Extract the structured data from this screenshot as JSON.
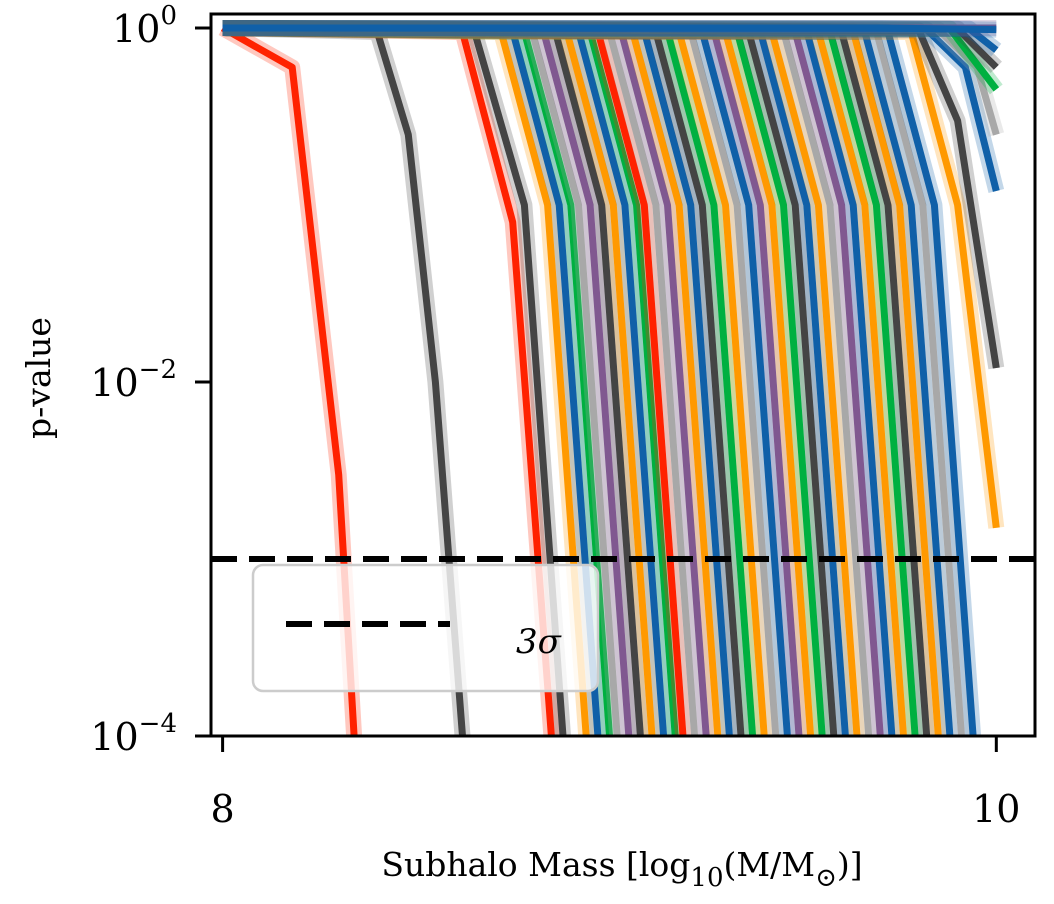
{
  "chart_data": {
    "type": "line",
    "xlabel": "Subhalo Mass [log",
    "xlabel_sub": "10",
    "xlabel_tail": "(M/M",
    "xlabel_sub2": "⊙",
    "xlabel_end": ")]",
    "ylabel": "p-value",
    "x_scale": "linear",
    "y_scale": "log",
    "xlim": [
      7.97,
      10.1
    ],
    "ylim": [
      0.0001,
      1.2
    ],
    "x_ticks": [
      {
        "value": 8,
        "label": "8"
      },
      {
        "value": 10,
        "label": "10"
      }
    ],
    "y_ticks": [
      {
        "value": 1,
        "base": "10",
        "exp": "0"
      },
      {
        "value": 0.01,
        "base": "10",
        "exp": "−2"
      },
      {
        "value": 0.0001,
        "base": "10",
        "exp": "−4"
      }
    ],
    "threshold": {
      "value": 0.001,
      "style": "dashed",
      "color": "#000000"
    },
    "legend": {
      "placement": "lower-left",
      "entries": [
        {
          "label": "3σ",
          "style": "dashed"
        }
      ]
    },
    "palette": [
      "#ff2200",
      "#444444",
      "#ff9900",
      "#1060a8",
      "#00b040",
      "#805890",
      "#a8a8a8"
    ],
    "series": [
      {
        "color": "#ff2200",
        "points": [
          [
            8.0,
            1.0
          ],
          [
            8.18,
            0.6
          ],
          [
            8.3,
            0.003
          ],
          [
            8.34,
            0.0001
          ]
        ]
      },
      {
        "color": "#444444",
        "points": [
          [
            8.0,
            1.0
          ],
          [
            8.4,
            0.95
          ],
          [
            8.48,
            0.25
          ],
          [
            8.55,
            0.01
          ],
          [
            8.62,
            0.0001
          ]
        ]
      },
      {
        "color": "#ff2200",
        "points": [
          [
            8.0,
            1.0
          ],
          [
            8.62,
            0.95
          ],
          [
            8.75,
            0.08
          ],
          [
            8.85,
            0.0001
          ]
        ]
      },
      {
        "color": "#444444",
        "points": [
          [
            8.0,
            1.0
          ],
          [
            8.65,
            0.97
          ],
          [
            8.78,
            0.1
          ],
          [
            8.88,
            0.0001
          ]
        ]
      },
      {
        "color": "#ff9900",
        "points": [
          [
            8.0,
            1.0
          ],
          [
            8.72,
            0.95
          ],
          [
            8.84,
            0.1
          ],
          [
            8.94,
            0.0001
          ]
        ]
      },
      {
        "color": "#1060a8",
        "points": [
          [
            8.0,
            1.0
          ],
          [
            8.75,
            0.96
          ],
          [
            8.87,
            0.1
          ],
          [
            8.97,
            0.0001
          ]
        ]
      },
      {
        "color": "#00b040",
        "points": [
          [
            8.0,
            1.0
          ],
          [
            8.78,
            0.95
          ],
          [
            8.9,
            0.1
          ],
          [
            9.0,
            0.0001
          ]
        ]
      },
      {
        "color": "#a8a8a8",
        "points": [
          [
            8.0,
            1.0
          ],
          [
            8.8,
            0.96
          ],
          [
            8.92,
            0.1
          ],
          [
            9.02,
            0.0001
          ]
        ]
      },
      {
        "color": "#805890",
        "points": [
          [
            8.0,
            1.0
          ],
          [
            8.83,
            0.95
          ],
          [
            8.95,
            0.1
          ],
          [
            9.05,
            0.0001
          ]
        ]
      },
      {
        "color": "#444444",
        "points": [
          [
            8.0,
            1.0
          ],
          [
            8.86,
            0.96
          ],
          [
            8.98,
            0.1
          ],
          [
            9.08,
            0.0001
          ]
        ]
      },
      {
        "color": "#ff9900",
        "points": [
          [
            8.0,
            1.0
          ],
          [
            8.89,
            0.95
          ],
          [
            9.01,
            0.1
          ],
          [
            9.11,
            0.0001
          ]
        ]
      },
      {
        "color": "#1060a8",
        "points": [
          [
            8.0,
            1.0
          ],
          [
            8.92,
            0.96
          ],
          [
            9.04,
            0.1
          ],
          [
            9.14,
            0.0001
          ]
        ]
      },
      {
        "color": "#00b040",
        "points": [
          [
            8.0,
            1.0
          ],
          [
            8.95,
            0.95
          ],
          [
            9.07,
            0.1
          ],
          [
            9.17,
            0.0001
          ]
        ]
      },
      {
        "color": "#ff2200",
        "points": [
          [
            8.0,
            1.0
          ],
          [
            8.97,
            0.96
          ],
          [
            9.09,
            0.1
          ],
          [
            9.19,
            0.0001
          ]
        ]
      },
      {
        "color": "#a8a8a8",
        "points": [
          [
            8.0,
            1.0
          ],
          [
            9.0,
            0.95
          ],
          [
            9.12,
            0.1
          ],
          [
            9.22,
            0.0001
          ]
        ]
      },
      {
        "color": "#805890",
        "points": [
          [
            8.0,
            1.0
          ],
          [
            9.03,
            0.96
          ],
          [
            9.15,
            0.1
          ],
          [
            9.25,
            0.0001
          ]
        ]
      },
      {
        "color": "#ff9900",
        "points": [
          [
            8.0,
            1.0
          ],
          [
            9.06,
            0.95
          ],
          [
            9.18,
            0.1
          ],
          [
            9.28,
            0.0001
          ]
        ]
      },
      {
        "color": "#1060a8",
        "points": [
          [
            8.0,
            1.0
          ],
          [
            9.09,
            0.96
          ],
          [
            9.21,
            0.1
          ],
          [
            9.31,
            0.0001
          ]
        ]
      },
      {
        "color": "#444444",
        "points": [
          [
            8.0,
            1.0
          ],
          [
            9.12,
            0.95
          ],
          [
            9.24,
            0.1
          ],
          [
            9.34,
            0.0001
          ]
        ]
      },
      {
        "color": "#00b040",
        "points": [
          [
            8.0,
            1.0
          ],
          [
            9.15,
            0.96
          ],
          [
            9.27,
            0.1
          ],
          [
            9.37,
            0.0001
          ]
        ]
      },
      {
        "color": "#ff9900",
        "points": [
          [
            8.0,
            1.0
          ],
          [
            9.18,
            0.95
          ],
          [
            9.3,
            0.1
          ],
          [
            9.4,
            0.0001
          ]
        ]
      },
      {
        "color": "#a8a8a8",
        "points": [
          [
            8.0,
            1.0
          ],
          [
            9.21,
            0.96
          ],
          [
            9.33,
            0.1
          ],
          [
            9.43,
            0.0001
          ]
        ]
      },
      {
        "color": "#1060a8",
        "points": [
          [
            8.0,
            1.0
          ],
          [
            9.24,
            0.95
          ],
          [
            9.36,
            0.1
          ],
          [
            9.46,
            0.0001
          ]
        ]
      },
      {
        "color": "#805890",
        "points": [
          [
            8.0,
            1.0
          ],
          [
            9.27,
            0.96
          ],
          [
            9.39,
            0.1
          ],
          [
            9.49,
            0.0001
          ]
        ]
      },
      {
        "color": "#ff9900",
        "points": [
          [
            8.0,
            1.0
          ],
          [
            9.3,
            0.95
          ],
          [
            9.42,
            0.1
          ],
          [
            9.52,
            0.0001
          ]
        ]
      },
      {
        "color": "#00b040",
        "points": [
          [
            8.0,
            1.0
          ],
          [
            9.33,
            0.96
          ],
          [
            9.45,
            0.1
          ],
          [
            9.55,
            0.0001
          ]
        ]
      },
      {
        "color": "#444444",
        "points": [
          [
            8.0,
            1.0
          ],
          [
            9.36,
            0.95
          ],
          [
            9.48,
            0.1
          ],
          [
            9.58,
            0.0001
          ]
        ]
      },
      {
        "color": "#1060a8",
        "points": [
          [
            8.0,
            1.0
          ],
          [
            9.39,
            0.96
          ],
          [
            9.51,
            0.1
          ],
          [
            9.61,
            0.0001
          ]
        ]
      },
      {
        "color": "#ff9900",
        "points": [
          [
            8.0,
            1.0
          ],
          [
            9.42,
            0.95
          ],
          [
            9.54,
            0.1
          ],
          [
            9.64,
            0.0001
          ]
        ]
      },
      {
        "color": "#a8a8a8",
        "points": [
          [
            8.0,
            1.0
          ],
          [
            9.45,
            0.96
          ],
          [
            9.57,
            0.1
          ],
          [
            9.67,
            0.0001
          ]
        ]
      },
      {
        "color": "#805890",
        "points": [
          [
            8.0,
            1.0
          ],
          [
            9.48,
            0.95
          ],
          [
            9.6,
            0.1
          ],
          [
            9.7,
            0.0001
          ]
        ]
      },
      {
        "color": "#1060a8",
        "points": [
          [
            8.0,
            1.0
          ],
          [
            9.51,
            0.96
          ],
          [
            9.63,
            0.1
          ],
          [
            9.73,
            0.0001
          ]
        ]
      },
      {
        "color": "#ff9900",
        "points": [
          [
            8.0,
            1.0
          ],
          [
            9.54,
            0.95
          ],
          [
            9.66,
            0.1
          ],
          [
            9.76,
            0.0001
          ]
        ]
      },
      {
        "color": "#00b040",
        "points": [
          [
            8.0,
            1.0
          ],
          [
            9.57,
            0.96
          ],
          [
            9.69,
            0.1
          ],
          [
            9.79,
            0.0001
          ]
        ]
      },
      {
        "color": "#444444",
        "points": [
          [
            8.0,
            1.0
          ],
          [
            9.6,
            0.95
          ],
          [
            9.72,
            0.1
          ],
          [
            9.82,
            0.0001
          ]
        ]
      },
      {
        "color": "#ff9900",
        "points": [
          [
            8.0,
            1.0
          ],
          [
            9.63,
            0.96
          ],
          [
            9.75,
            0.1
          ],
          [
            9.85,
            0.0001
          ]
        ]
      },
      {
        "color": "#1060a8",
        "points": [
          [
            8.0,
            1.0
          ],
          [
            9.66,
            0.95
          ],
          [
            9.78,
            0.1
          ],
          [
            9.88,
            0.0001
          ]
        ]
      },
      {
        "color": "#a8a8a8",
        "points": [
          [
            8.0,
            1.0
          ],
          [
            9.69,
            0.96
          ],
          [
            9.81,
            0.1
          ],
          [
            9.91,
            0.0001
          ]
        ]
      },
      {
        "color": "#1060a8",
        "points": [
          [
            8.0,
            1.0
          ],
          [
            9.72,
            0.95
          ],
          [
            9.84,
            0.1
          ],
          [
            9.94,
            0.0001
          ]
        ]
      },
      {
        "color": "#ff9900",
        "points": [
          [
            8.0,
            1.0
          ],
          [
            9.78,
            0.95
          ],
          [
            9.9,
            0.1
          ],
          [
            10.0,
            0.0015
          ]
        ]
      },
      {
        "color": "#444444",
        "points": [
          [
            8.0,
            1.0
          ],
          [
            9.8,
            0.97
          ],
          [
            9.9,
            0.3
          ],
          [
            10.0,
            0.012
          ]
        ]
      },
      {
        "color": "#1060a8",
        "points": [
          [
            8.0,
            1.0
          ],
          [
            9.82,
            0.98
          ],
          [
            9.92,
            0.6
          ],
          [
            10.0,
            0.12
          ]
        ]
      },
      {
        "color": "#a8a8a8",
        "points": [
          [
            8.0,
            1.0
          ],
          [
            9.85,
            0.98
          ],
          [
            9.95,
            0.6
          ],
          [
            10.0,
            0.25
          ]
        ]
      },
      {
        "color": "#00b040",
        "points": [
          [
            8.0,
            1.0
          ],
          [
            9.88,
            0.99
          ],
          [
            10.0,
            0.45
          ]
        ]
      },
      {
        "color": "#444444",
        "points": [
          [
            8.0,
            1.0
          ],
          [
            9.9,
            0.99
          ],
          [
            10.0,
            0.6
          ]
        ]
      },
      {
        "color": "#1060a8",
        "points": [
          [
            8.0,
            1.0
          ],
          [
            9.93,
            0.99
          ],
          [
            10.0,
            0.75
          ]
        ]
      },
      {
        "color": "#805890",
        "points": [
          [
            8.0,
            1.0
          ],
          [
            10.0,
            1.0
          ]
        ]
      },
      {
        "color": "#1060a8",
        "points": [
          [
            8.0,
            1.0
          ],
          [
            9.7,
            1.0
          ],
          [
            10.0,
            0.98
          ]
        ]
      }
    ]
  }
}
